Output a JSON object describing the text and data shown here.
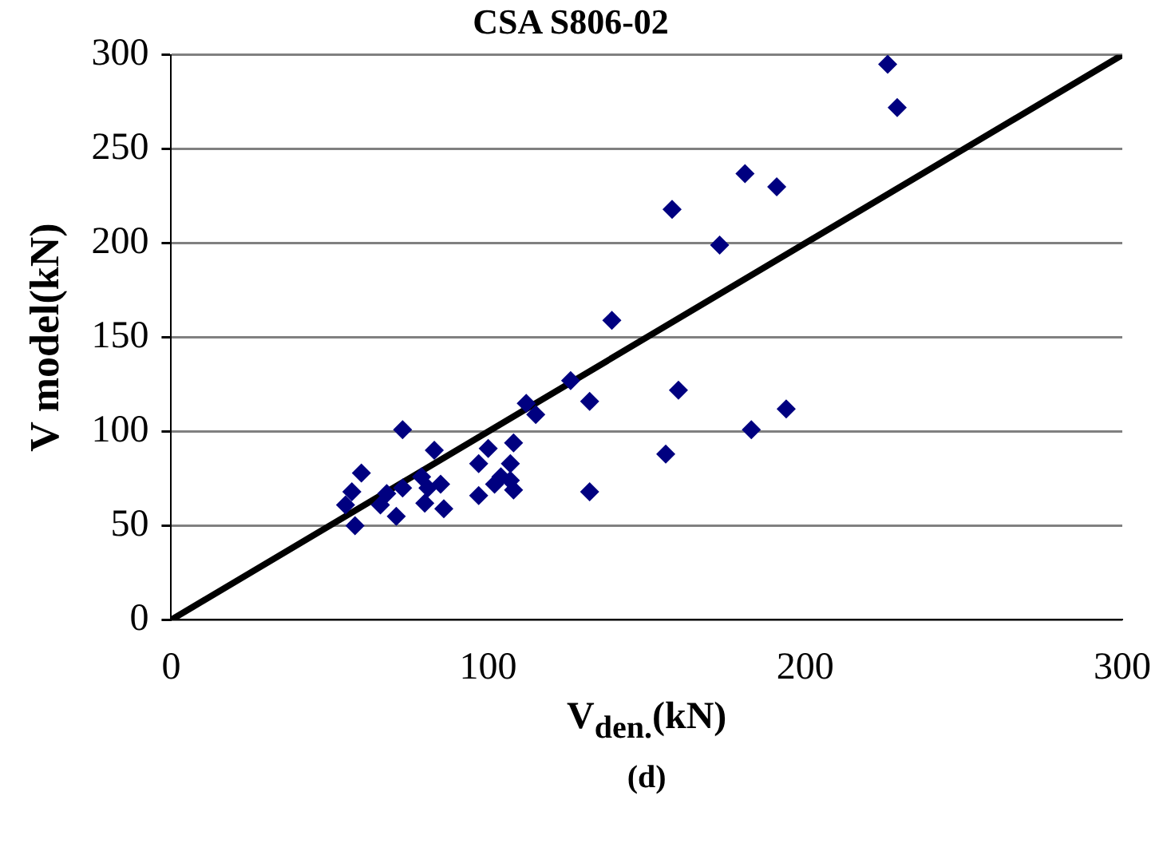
{
  "chart_data": {
    "type": "scatter",
    "title": "CSA S806-02",
    "xlabel": "V$_{den.}$(kN)",
    "ylabel": "V model(kN)",
    "annotations": [
      "(d)"
    ],
    "xlim": [
      0,
      300
    ],
    "ylim": [
      0,
      300
    ],
    "xticks": [
      0,
      100,
      200,
      300
    ],
    "yticks": [
      0,
      50,
      100,
      150,
      200,
      250,
      300
    ],
    "grid": "y",
    "marker": "diamond",
    "series": [
      {
        "color": "#000080",
        "x": [
          226,
          229,
          181,
          191,
          173,
          158,
          139,
          160,
          156,
          183,
          194,
          132,
          132,
          126,
          112,
          115,
          73,
          83,
          100,
          108,
          97,
          107,
          60,
          79,
          85,
          104,
          107,
          102,
          108,
          57,
          73,
          68,
          81,
          97,
          55,
          66,
          80,
          86,
          71,
          58
        ],
        "values": [
          295,
          272,
          237,
          230,
          199,
          218,
          159,
          122,
          88,
          101,
          112,
          116,
          68,
          127,
          115,
          109,
          101,
          90,
          91,
          94,
          83,
          83,
          78,
          76,
          72,
          76,
          74,
          72,
          69,
          68,
          70,
          67,
          70,
          66,
          61,
          61,
          62,
          59,
          55,
          50
        ]
      },
      {
        "type": "line",
        "color": "#000000",
        "marker": "none",
        "line_style": "solid",
        "x": [
          0,
          300
        ],
        "values": [
          0,
          300
        ]
      }
    ]
  }
}
